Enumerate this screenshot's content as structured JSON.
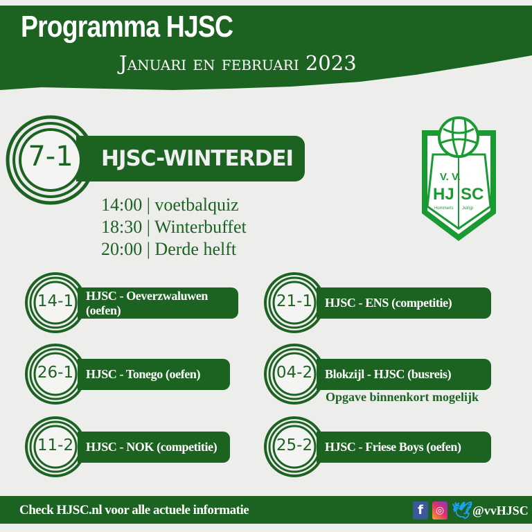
{
  "header": {
    "title": "Programma HJSC",
    "subtitle": "Januari en februari 2023"
  },
  "colors": {
    "green": "#1c6322",
    "logo_green": "#1a9a33",
    "background": "#ededeb"
  },
  "logo": {
    "line1": "V. V.",
    "left": "HJ",
    "right": "SC",
    "place_left": "Hommerts",
    "place_right": "Jutrijp"
  },
  "featured": {
    "date": "7-1",
    "title": "HJSC-WINTERDEI",
    "schedule": [
      "14:00 | voetbalquiz",
      "18:30 | Winterbuffet",
      "20:00 | Derde helft"
    ]
  },
  "matches": [
    {
      "date": "14-1",
      "label": "HJSC - Oeverzwaluwen (oefen)"
    },
    {
      "date": "21-1",
      "label": "HJSC - ENS (competitie)"
    },
    {
      "date": "26-1",
      "label": "HJSC - Tonego (oefen)"
    },
    {
      "date": "04-2",
      "label": "Blokzijl - HJSC (busreis)",
      "note": "Opgave binnenkort mogelijk"
    },
    {
      "date": "11-2",
      "label": "HJSC - NOK (competitie)"
    },
    {
      "date": "25-2",
      "label": "HJSC - Friese Boys (oefen)"
    }
  ],
  "footer": {
    "text": "Check HJSC.nl voor alle actuele informatie",
    "handle": "@vvHJSC",
    "icons": [
      "facebook-icon",
      "instagram-icon",
      "twitter-icon"
    ]
  }
}
